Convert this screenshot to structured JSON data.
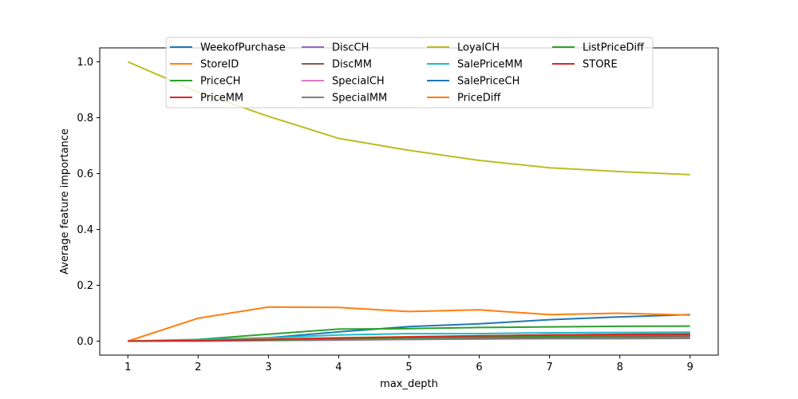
{
  "chart_data": {
    "type": "line",
    "xlabel": "max_depth",
    "ylabel": "Average feature importance",
    "x": [
      1,
      2,
      3,
      4,
      5,
      6,
      7,
      8,
      9
    ],
    "xlim": [
      0.6,
      9.4
    ],
    "ylim": [
      -0.05,
      1.05
    ],
    "xticks": [
      "1",
      "2",
      "3",
      "4",
      "5",
      "6",
      "7",
      "8",
      "9"
    ],
    "yticks": [
      "0.0",
      "0.2",
      "0.4",
      "0.6",
      "0.8",
      "1.0"
    ],
    "ytick_values": [
      0.0,
      0.2,
      0.4,
      0.6,
      0.8,
      1.0
    ],
    "grid": false,
    "legend": "top-center",
    "series": [
      {
        "name": "WeekofPurchase",
        "color": "#1f77b4",
        "values": [
          0.0,
          0.004,
          0.012,
          0.033,
          0.052,
          0.062,
          0.077,
          0.087,
          0.095
        ]
      },
      {
        "name": "StoreID",
        "color": "#ff7f0e",
        "values": [
          0.0,
          0.082,
          0.122,
          0.121,
          0.106,
          0.112,
          0.095,
          0.1,
          0.093
        ]
      },
      {
        "name": "PriceCH",
        "color": "#2ca02c",
        "values": [
          0.0,
          0.006,
          0.025,
          0.043,
          0.045,
          0.049,
          0.051,
          0.053,
          0.054
        ]
      },
      {
        "name": "PriceMM",
        "color": "#d62728",
        "values": [
          0.0,
          0.001,
          0.004,
          0.008,
          0.012,
          0.015,
          0.017,
          0.019,
          0.02
        ]
      },
      {
        "name": "DiscCH",
        "color": "#9467bd",
        "values": [
          0.0,
          0.0,
          0.002,
          0.004,
          0.006,
          0.008,
          0.01,
          0.011,
          0.012
        ]
      },
      {
        "name": "DiscMM",
        "color": "#8c564b",
        "values": [
          0.0,
          0.001,
          0.003,
          0.006,
          0.009,
          0.012,
          0.015,
          0.017,
          0.018
        ]
      },
      {
        "name": "SpecialCH",
        "color": "#e377c2",
        "values": [
          0.0,
          0.001,
          0.004,
          0.008,
          0.012,
          0.016,
          0.019,
          0.022,
          0.024
        ]
      },
      {
        "name": "SpecialMM",
        "color": "#7f7f7f",
        "values": [
          0.0,
          0.001,
          0.003,
          0.005,
          0.007,
          0.008,
          0.009,
          0.009,
          0.01
        ]
      },
      {
        "name": "LoyalCH",
        "color": "#bcbd22",
        "values": [
          1.0,
          0.892,
          0.805,
          0.726,
          0.683,
          0.647,
          0.621,
          0.607,
          0.596
        ]
      },
      {
        "name": "SalePriceMM",
        "color": "#17becf",
        "values": [
          0.0,
          0.005,
          0.012,
          0.022,
          0.027,
          0.027,
          0.03,
          0.031,
          0.032
        ]
      },
      {
        "name": "SalePriceCH",
        "color": "#1f77b4",
        "values": [
          0.0,
          0.002,
          0.006,
          0.01,
          0.014,
          0.018,
          0.022,
          0.024,
          0.026
        ]
      },
      {
        "name": "PriceDiff",
        "color": "#ff7f0e",
        "values": [
          0.0,
          0.003,
          0.008,
          0.012,
          0.016,
          0.019,
          0.022,
          0.025,
          0.027
        ]
      },
      {
        "name": "ListPriceDiff",
        "color": "#2ca02c",
        "values": [
          0.0,
          0.002,
          0.005,
          0.009,
          0.012,
          0.015,
          0.018,
          0.02,
          0.021
        ]
      },
      {
        "name": "STORE",
        "color": "#d62728",
        "values": [
          0.0,
          0.002,
          0.006,
          0.011,
          0.015,
          0.019,
          0.022,
          0.024,
          0.025
        ]
      }
    ]
  }
}
